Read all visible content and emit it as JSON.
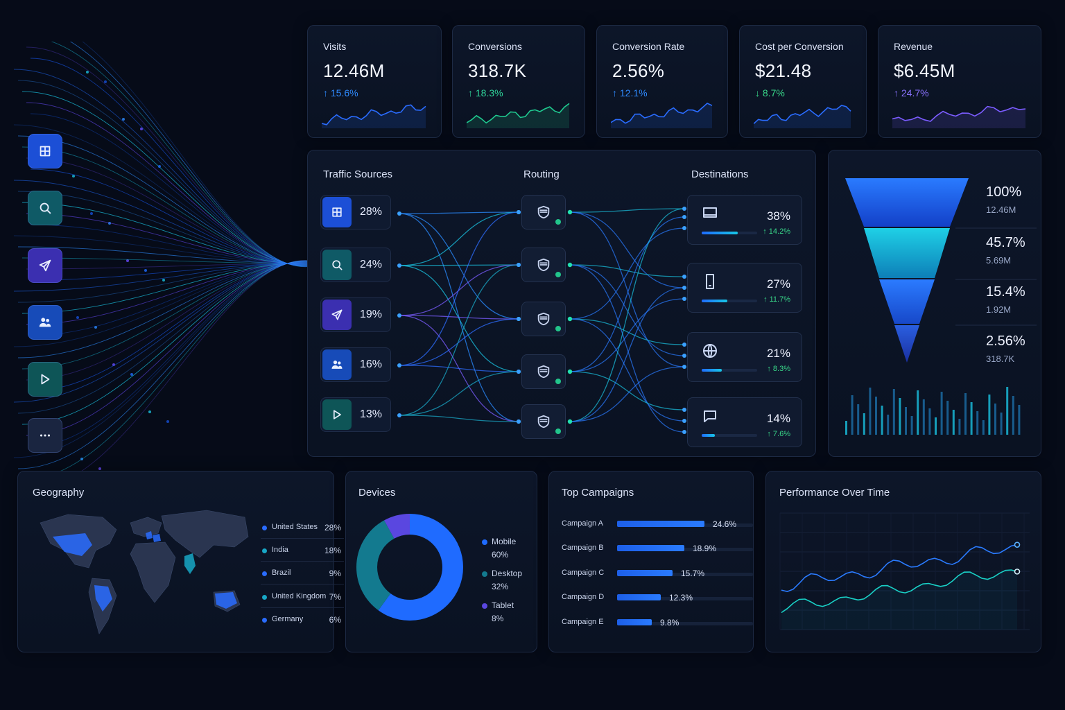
{
  "colors": {
    "bg": "#060b18",
    "blue": "#2a7bff",
    "cyan": "#18c7e6",
    "purple": "#7b5cff",
    "green": "#22c58b",
    "up": "#39d98a"
  },
  "sidebar": {
    "items": [
      {
        "icon": "grid-plus-icon",
        "color": "#1c4fd6"
      },
      {
        "icon": "search-icon",
        "color": "#0f5a66"
      },
      {
        "icon": "send-icon",
        "color": "#3b2fb0"
      },
      {
        "icon": "users-icon",
        "color": "#174bb8"
      },
      {
        "icon": "play-icon",
        "color": "#0e5557"
      },
      {
        "icon": "more-icon",
        "color": "#1a2540"
      }
    ]
  },
  "kpis": [
    {
      "label": "Visits",
      "value": "12.46M",
      "delta": "↑ 15.6%",
      "delta_color": "#2f8bff",
      "spark_color": "#2a6cff"
    },
    {
      "label": "Conversions",
      "value": "318.7K",
      "delta": "↑ 18.3%",
      "delta_color": "#2fd59a",
      "spark_color": "#1fc98f"
    },
    {
      "label": "Conversion Rate",
      "value": "2.56%",
      "delta": "↑ 12.1%",
      "delta_color": "#2f8bff",
      "spark_color": "#2a6cff"
    },
    {
      "label": "Cost per Conversion",
      "value": "$21.48",
      "delta": "↓ 8.7%",
      "delta_color": "#39d98a",
      "spark_color": "#2a6cff"
    },
    {
      "label": "Revenue",
      "value": "$6.45M",
      "delta": "↑ 24.7%",
      "delta_color": "#8a73ff",
      "spark_color": "#7b5cff"
    }
  ],
  "flow": {
    "traffic_sources_title": "Traffic Sources",
    "routing_title": "Routing",
    "destinations_title": "Destinations",
    "sources": [
      {
        "icon": "grid-plus-icon",
        "pct": "28%",
        "color": "#1c4fd6"
      },
      {
        "icon": "search-icon",
        "pct": "24%",
        "color": "#0f5a66"
      },
      {
        "icon": "send-icon",
        "pct": "19%",
        "color": "#3b2fb0"
      },
      {
        "icon": "users-icon",
        "pct": "16%",
        "color": "#174bb8"
      },
      {
        "icon": "play-icon",
        "pct": "13%",
        "color": "#0e5557"
      }
    ],
    "destinations": [
      {
        "icon": "monitor-icon",
        "pct": "38%",
        "change": "↑ 14.2%",
        "level": 0.38
      },
      {
        "icon": "mobile-icon",
        "pct": "27%",
        "change": "↑ 11.7%",
        "level": 0.27
      },
      {
        "icon": "globe-icon",
        "pct": "21%",
        "change": "↑ 8.3%",
        "level": 0.21
      },
      {
        "icon": "chat-icon",
        "pct": "14%",
        "change": "↑ 7.6%",
        "level": 0.14
      }
    ]
  },
  "funnel": {
    "stages": [
      {
        "pct": "100%",
        "abs": "12.46M"
      },
      {
        "pct": "45.7%",
        "abs": "5.69M"
      },
      {
        "pct": "15.4%",
        "abs": "1.92M"
      },
      {
        "pct": "2.56%",
        "abs": "318.7K"
      }
    ]
  },
  "geography": {
    "title": "Geography",
    "rows": [
      {
        "name": "United States",
        "value": "28%",
        "color": "#2a6cff"
      },
      {
        "name": "India",
        "value": "18%",
        "color": "#18a7c6"
      },
      {
        "name": "Brazil",
        "value": "9%",
        "color": "#2a6cff"
      },
      {
        "name": "United Kingdom",
        "value": "7%",
        "color": "#18a7c6"
      },
      {
        "name": "Germany",
        "value": "6%",
        "color": "#2a6cff"
      }
    ]
  },
  "devices": {
    "title": "Devices",
    "items": [
      {
        "name": "Mobile",
        "value": "60%",
        "share": 60,
        "color": "#1f6bff"
      },
      {
        "name": "Desktop",
        "value": "32%",
        "share": 32,
        "color": "#137a8f"
      },
      {
        "name": "Tablet",
        "value": "8%",
        "share": 8,
        "color": "#5a47e0"
      }
    ]
  },
  "campaigns": {
    "title": "Top Campaigns",
    "rows": [
      {
        "name": "Campaign A",
        "value": "24.6%",
        "v": 24.6
      },
      {
        "name": "Campaign B",
        "value": "18.9%",
        "v": 18.9
      },
      {
        "name": "Campaign C",
        "value": "15.7%",
        "v": 15.7
      },
      {
        "name": "Campaign D",
        "value": "12.3%",
        "v": 12.3
      },
      {
        "name": "Campaign E",
        "value": "9.8%",
        "v": 9.8
      }
    ]
  },
  "performance": {
    "title": "Performance Over Time"
  }
}
